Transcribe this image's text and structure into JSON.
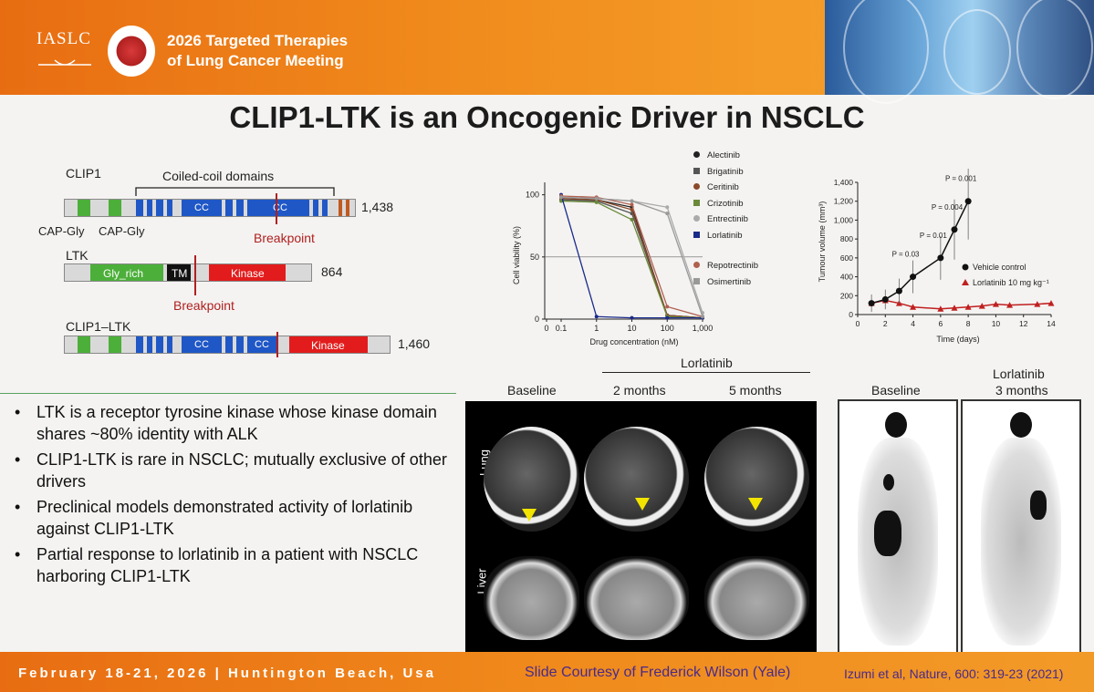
{
  "header": {
    "org": "IASLC",
    "meeting_line1": "2026 Targeted Therapies",
    "meeting_line2": "of Lung Cancer Meeting"
  },
  "title": "CLIP1-LTK is an Oncogenic Driver in NSCLC",
  "diagram": {
    "clip1_label": "CLIP1",
    "coiled_coil_label": "Coiled-coil domains",
    "clip1_length": "1,438",
    "cap_gly_1": "CAP-Gly",
    "cap_gly_2": "CAP-Gly",
    "cc": "CC",
    "breakpoint1": "Breakpoint",
    "ltk_label": "LTK",
    "gly_rich": "Gly_rich",
    "tm": "TM",
    "kinase": "Kinase",
    "ltk_length": "864",
    "breakpoint2": "Breakpoint",
    "fusion_label": "CLIP1–LTK",
    "fusion_length": "1,460"
  },
  "viability_chart": {
    "ylabel": "Cell viability (%)",
    "xlabel": "Drug concentration (nM)",
    "yticks": [
      "0",
      "50",
      "100"
    ],
    "xticks": [
      "0",
      "0.1",
      "1",
      "10",
      "100",
      "1,000"
    ],
    "legend": [
      "Alectinib",
      "Brigatinib",
      "Ceritinib",
      "Crizotinib",
      "Entrectinib",
      "Lorlatinib",
      "Repotrectinib",
      "Osimertinib"
    ]
  },
  "tumour_chart": {
    "ylabel": "Tumour volume (mm³)",
    "xlabel": "Time (days)",
    "yticks": [
      "0",
      "200",
      "400",
      "600",
      "800",
      "1,000",
      "1,200",
      "1,400"
    ],
    "xticks": [
      "0",
      "2",
      "4",
      "6",
      "8",
      "10",
      "12",
      "14"
    ],
    "pvals": [
      "P = 0.03",
      "P = 0.01",
      "P = 0.004",
      "P = 0.001"
    ],
    "legend_vehicle": "Vehicle control",
    "legend_lorlatinib": "Lorlatinib 10 mg kg⁻¹"
  },
  "chart_data": [
    {
      "type": "line",
      "xlabel": "Drug concentration (nM)",
      "ylabel": "Cell viability (%)",
      "ylim": [
        0,
        110
      ],
      "x": [
        0.1,
        1,
        10,
        100,
        1000
      ],
      "series": [
        {
          "name": "Alectinib",
          "values": [
            97,
            96,
            90,
            3,
            1
          ]
        },
        {
          "name": "Brigatinib",
          "values": [
            96,
            95,
            85,
            3,
            1
          ]
        },
        {
          "name": "Ceritinib",
          "values": [
            97,
            96,
            88,
            3,
            1
          ]
        },
        {
          "name": "Crizotinib",
          "values": [
            95,
            94,
            80,
            2,
            1
          ]
        },
        {
          "name": "Entrectinib",
          "values": [
            98,
            97,
            95,
            90,
            5
          ]
        },
        {
          "name": "Lorlatinib",
          "values": [
            100,
            2,
            1,
            1,
            1
          ]
        },
        {
          "name": "Repotrectinib",
          "values": [
            99,
            98,
            92,
            10,
            2
          ]
        },
        {
          "name": "Osimertinib",
          "values": [
            98,
            97,
            95,
            85,
            2
          ]
        }
      ]
    },
    {
      "type": "line",
      "xlabel": "Time (days)",
      "ylabel": "Tumour volume (mm³)",
      "ylim": [
        0,
        1400
      ],
      "x": [
        1,
        2,
        3,
        4,
        6,
        7,
        8,
        9,
        10,
        11,
        13,
        14
      ],
      "series": [
        {
          "name": "Vehicle control",
          "x": [
            1,
            2,
            3,
            4,
            6,
            7,
            8
          ],
          "values": [
            120,
            160,
            250,
            400,
            600,
            900,
            1200
          ]
        },
        {
          "name": "Lorlatinib 10 mg kg⁻¹",
          "x": [
            1,
            2,
            3,
            4,
            6,
            7,
            8,
            9,
            10,
            11,
            13,
            14
          ],
          "values": [
            120,
            150,
            120,
            80,
            60,
            70,
            80,
            90,
            110,
            100,
            110,
            120
          ]
        }
      ]
    }
  ],
  "bullets": [
    "LTK is a receptor tyrosine kinase whose kinase domain shares ~80% identity with ALK",
    "CLIP1-LTK is rare in NSCLC; mutually exclusive of other drivers",
    "Preclinical models demonstrated activity of lorlatinib against CLIP1-LTK",
    "Partial response to lorlatinib in a patient with NSCLC harboring CLIP1-LTK"
  ],
  "imaging": {
    "lorlatinib_group": "Lorlatinib",
    "baseline": "Baseline",
    "two_months": "2 months",
    "five_months": "5 months",
    "lung": "Lung",
    "liver": "Liver",
    "pet_baseline": "Baseline",
    "pet_lorlatinib": "Lorlatinib",
    "pet_3months": "3 months"
  },
  "footer": {
    "date": "February 18-21, 2026  |  Huntington Beach, Usa",
    "courtesy": "Slide Courtesy of Frederick Wilson (Yale)",
    "ref": "Izumi et al, Nature, 600: 319-23 (2021)"
  },
  "colors": {
    "header_orange": "#f08a1c",
    "domain_blue": "#1f57c6",
    "domain_green": "#4caf3a",
    "kinase_red": "#e21c1c",
    "breakpoint_red": "#b02020"
  }
}
